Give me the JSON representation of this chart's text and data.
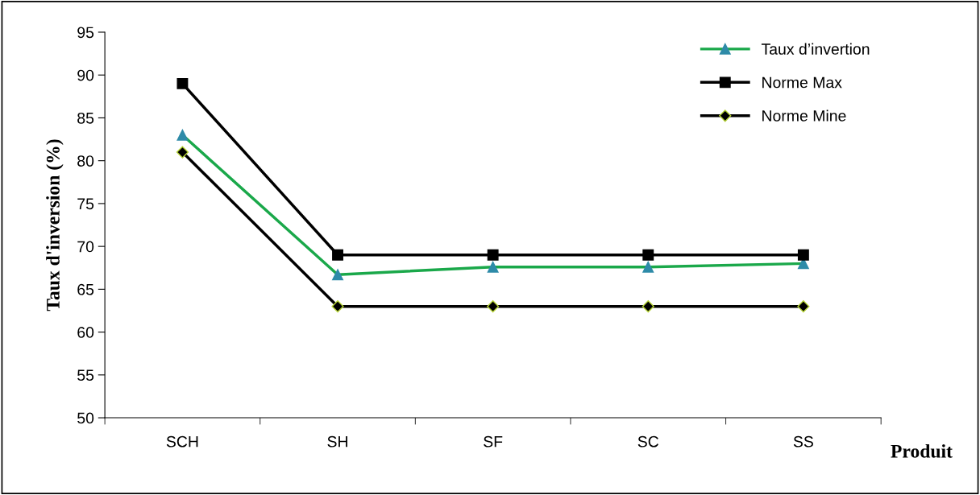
{
  "chart_data": {
    "type": "line",
    "xlabel": "Produit",
    "ylabel": "Taux d'inversion (%)",
    "categories": [
      "SCH",
      "SH",
      "SF",
      "SC",
      "SS"
    ],
    "series": [
      {
        "name": "Taux d’invertion",
        "color": "#1aa84a",
        "marker": "triangle",
        "values": [
          83,
          66.7,
          67.6,
          67.6,
          68
        ]
      },
      {
        "name": "Norme Max",
        "color": "#000000",
        "marker": "square",
        "values": [
          89,
          69,
          69,
          69,
          69
        ]
      },
      {
        "name": "Norme Mine",
        "color": "#000000",
        "marker": "diamond",
        "values": [
          81,
          63,
          63,
          63,
          63
        ]
      }
    ],
    "ylim": [
      50,
      95
    ],
    "yticks": [
      50,
      55,
      60,
      65,
      70,
      75,
      80,
      85,
      90,
      95
    ],
    "grid": false,
    "legend": "top right",
    "line_style": "solid"
  }
}
